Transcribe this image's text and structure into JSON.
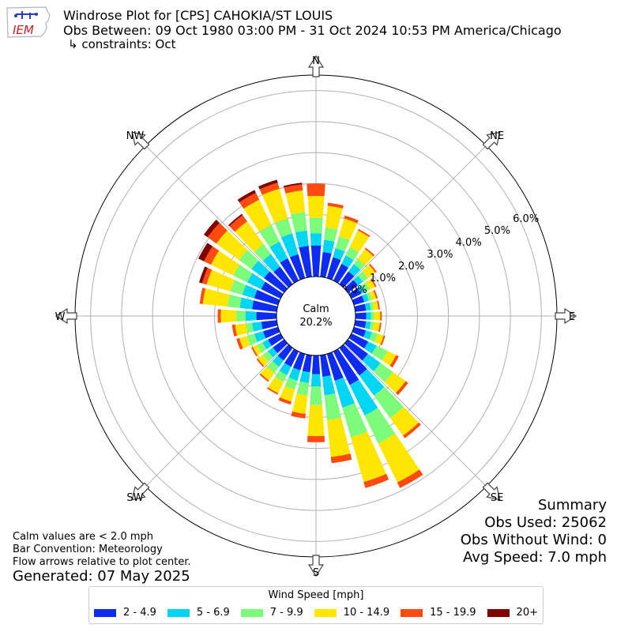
{
  "logo": {
    "text": "IEM"
  },
  "header": {
    "title": "Windrose Plot for [CPS] CAHOKIA/ST LOUIS",
    "obs_between": "Obs Between: 09 Oct 1980 03:00 PM - 31 Oct 2024 10:53 PM America/Chicago",
    "constraints": "↳ constraints: Oct"
  },
  "summary": {
    "heading": "Summary",
    "obs_used": "Obs Used: 25062",
    "obs_without_wind": "Obs Without Wind: 0",
    "avg_speed": "Avg Speed: 7.0 mph"
  },
  "notes": {
    "calm_def": "Calm values are < 2.0 mph",
    "bar_convention": "Bar Convention: Meteorology",
    "flow_arrows": "Flow arrows relative to plot center.",
    "generated": "Generated: 07 May 2025"
  },
  "center": {
    "label": "Calm",
    "value": "20.2%"
  },
  "colors": {
    "bins": [
      "#0d2cf0",
      "#00d5f3",
      "#7dfb7b",
      "#ffe600",
      "#ff4a10",
      "#800000"
    ]
  },
  "chart_data": {
    "type": "windrose",
    "directions_deg": [
      0,
      10,
      20,
      30,
      40,
      50,
      60,
      70,
      80,
      90,
      100,
      110,
      120,
      130,
      140,
      150,
      160,
      170,
      180,
      190,
      200,
      210,
      220,
      230,
      240,
      250,
      260,
      270,
      280,
      290,
      300,
      310,
      320,
      330,
      340,
      350
    ],
    "compass_labels": [
      "N",
      "NE",
      "E",
      "SE",
      "S",
      "SW",
      "W",
      "NW"
    ],
    "radial_ticks": [
      "0.0%",
      "1.0%",
      "2.0%",
      "3.0%",
      "4.0%",
      "5.0%",
      "6.0%"
    ],
    "rmax": 6.5,
    "legend_title": "Wind Speed [mph]",
    "speed_bins": [
      "2 - 4.9",
      "5 - 6.9",
      "7 - 9.9",
      "10 - 14.9",
      "15 - 19.9",
      "20+"
    ],
    "cumulative_percent": [
      [
        1.0,
        1.4,
        1.9,
        2.6,
        3.0,
        3.0
      ],
      [
        0.8,
        1.2,
        1.6,
        2.3,
        2.4,
        2.4
      ],
      [
        0.7,
        1.0,
        1.4,
        2.0,
        2.1,
        2.1
      ],
      [
        0.6,
        0.9,
        1.2,
        1.8,
        1.85,
        1.85
      ],
      [
        0.5,
        0.8,
        1.0,
        1.4,
        1.45,
        1.45
      ],
      [
        0.4,
        0.6,
        0.8,
        1.1,
        1.15,
        1.15
      ],
      [
        0.35,
        0.5,
        0.65,
        0.85,
        0.9,
        0.9
      ],
      [
        0.35,
        0.5,
        0.6,
        0.75,
        0.8,
        0.8
      ],
      [
        0.35,
        0.5,
        0.6,
        0.75,
        0.8,
        0.8
      ],
      [
        0.35,
        0.5,
        0.6,
        0.8,
        0.85,
        0.85
      ],
      [
        0.35,
        0.5,
        0.6,
        0.8,
        0.85,
        0.85
      ],
      [
        0.4,
        0.6,
        0.8,
        1.0,
        1.05,
        1.05
      ],
      [
        0.6,
        0.9,
        1.3,
        1.6,
        1.7,
        1.7
      ],
      [
        0.8,
        1.3,
        1.8,
        2.3,
        2.4,
        2.4
      ],
      [
        1.1,
        1.9,
        2.8,
        3.5,
        3.6,
        3.6
      ],
      [
        1.2,
        2.3,
        3.3,
        4.7,
        4.9,
        4.9
      ],
      [
        0.9,
        1.8,
        2.8,
        4.3,
        4.5,
        4.5
      ],
      [
        0.7,
        1.3,
        2.1,
        3.3,
        3.5,
        3.5
      ],
      [
        0.6,
        1.0,
        1.6,
        2.6,
        2.8,
        2.8
      ],
      [
        0.55,
        0.9,
        1.3,
        1.9,
        2.05,
        2.05
      ],
      [
        0.55,
        0.9,
        1.2,
        1.6,
        1.7,
        1.7
      ],
      [
        0.55,
        0.85,
        1.1,
        1.5,
        1.55,
        1.55
      ],
      [
        0.5,
        0.75,
        1.0,
        1.3,
        1.35,
        1.35
      ],
      [
        0.45,
        0.65,
        0.85,
        1.05,
        1.1,
        1.1
      ],
      [
        0.45,
        0.65,
        0.85,
        1.0,
        1.05,
        1.05
      ],
      [
        0.5,
        0.8,
        1.05,
        1.3,
        1.4,
        1.4
      ],
      [
        0.5,
        0.8,
        1.0,
        1.35,
        1.45,
        1.45
      ],
      [
        0.65,
        1.0,
        1.3,
        1.8,
        1.9,
        1.9
      ],
      [
        0.8,
        1.2,
        1.6,
        2.4,
        2.5,
        2.5
      ],
      [
        0.8,
        1.2,
        1.6,
        2.4,
        2.55,
        2.65
      ],
      [
        0.7,
        1.2,
        1.7,
        2.5,
        2.75,
        2.95
      ],
      [
        0.8,
        1.3,
        1.8,
        2.7,
        3.05,
        3.2
      ],
      [
        0.7,
        1.2,
        1.6,
        2.5,
        2.75,
        2.8
      ],
      [
        0.8,
        1.4,
        2.0,
        2.9,
        3.15,
        3.25
      ],
      [
        0.8,
        1.5,
        2.0,
        3.0,
        3.2,
        3.3
      ],
      [
        1.0,
        1.5,
        2.1,
        2.8,
        3.0,
        3.05
      ]
    ]
  }
}
